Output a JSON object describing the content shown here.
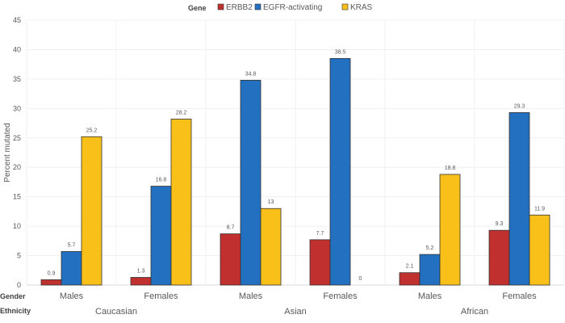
{
  "chart_data": {
    "type": "bar",
    "ylabel": "Percent mutated",
    "ylim": [
      0,
      45
    ],
    "yticks": [
      0,
      5,
      10,
      15,
      20,
      25,
      30,
      35,
      40,
      45
    ],
    "grid": true,
    "legend": {
      "title": "Gene",
      "placement": "top"
    },
    "row_headers": {
      "gender": "Gender",
      "ethnicity": "Ethnicity"
    },
    "categories": [
      "Males",
      "Females",
      "Males",
      "Females",
      "Males",
      "Females"
    ],
    "ethnicities": [
      "Caucasian",
      "Asian",
      "African"
    ],
    "series": [
      {
        "name": "ERBB2",
        "color": "#C0302E",
        "values": [
          0.9,
          1.3,
          8.7,
          7.7,
          2.1,
          9.3
        ]
      },
      {
        "name": "EGFR-activating",
        "color": "#2370C0",
        "values": [
          5.7,
          16.8,
          34.8,
          38.5,
          5.2,
          29.3
        ]
      },
      {
        "name": "KRAS",
        "color": "#F9C01A",
        "values": [
          25.2,
          28.2,
          13,
          0,
          18.8,
          11.9
        ]
      }
    ]
  }
}
